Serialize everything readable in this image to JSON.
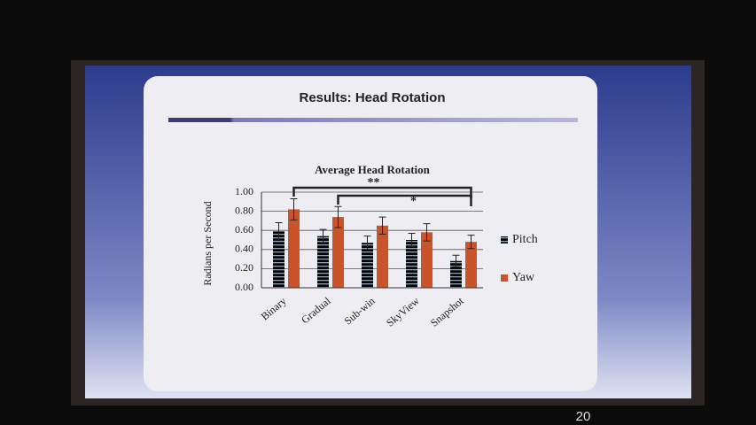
{
  "slide_title": "Results: Head Rotation",
  "page_number": "20",
  "chart_data": {
    "type": "bar",
    "title": "Average Head Rotation",
    "y_label": "Radians per Second",
    "categories": [
      "Binary",
      "Gradual",
      "Sub-win",
      "SkyView",
      "Snapshot"
    ],
    "series": [
      {
        "name": "Pitch",
        "color": "#4d6b82",
        "values": [
          0.59,
          0.54,
          0.47,
          0.5,
          0.28
        ],
        "errors": [
          0.09,
          0.07,
          0.07,
          0.07,
          0.06
        ]
      },
      {
        "name": "Yaw",
        "color": "#c9532b",
        "values": [
          0.82,
          0.74,
          0.65,
          0.58,
          0.48
        ],
        "errors": [
          0.11,
          0.11,
          0.09,
          0.09,
          0.07
        ]
      }
    ],
    "ylim": [
      0,
      1
    ],
    "yticks": [
      {
        "value": 0,
        "label": "0.00"
      },
      {
        "value": 0.2,
        "label": "0.20"
      },
      {
        "value": 0.4,
        "label": "0.40"
      },
      {
        "value": 0.6,
        "label": "0.60"
      },
      {
        "value": 0.8,
        "label": "0.80"
      },
      {
        "value": 1,
        "label": "1.00"
      }
    ],
    "grid": true,
    "legend": "right",
    "annotations": [
      "**",
      "*"
    ]
  }
}
